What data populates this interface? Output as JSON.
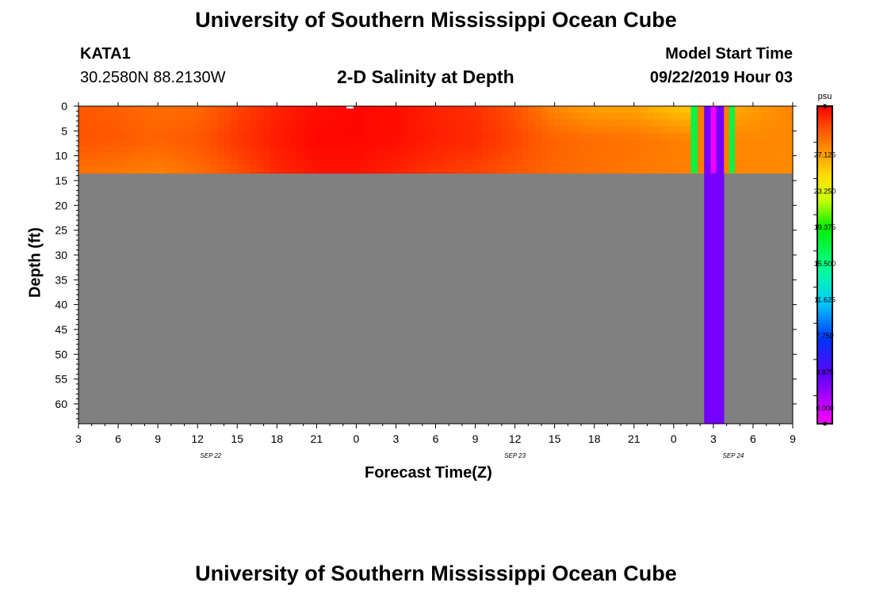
{
  "header": {
    "title": "University of Southern Mississippi Ocean Cube",
    "station": "KATA1",
    "coords": "30.2580N 88.2130W",
    "plot_title": "2-D Salinity at Depth",
    "model_start_label": "Model Start Time",
    "model_start_value": "09/22/2019 Hour 03"
  },
  "footer": {
    "title": "University of Southern Mississippi Ocean Cube"
  },
  "colors": {
    "no_data": "#808080",
    "background": "#ffffff"
  },
  "chart_data": {
    "type": "heatmap",
    "title": "2-D Salinity at Depth",
    "xlabel": "Forecast Time(Z)",
    "ylabel": "Depth (ft)",
    "x_hours_range": [
      0,
      54
    ],
    "x_tick_labels": [
      "3",
      "6",
      "9",
      "12",
      "15",
      "18",
      "21",
      "0",
      "3",
      "6",
      "9",
      "12",
      "15",
      "18",
      "21",
      "0",
      "3",
      "6",
      "9"
    ],
    "date_labels": [
      {
        "text": "SEP 22",
        "hour": 10
      },
      {
        "text": "SEP 23",
        "hour": 33
      },
      {
        "text": "SEP 24",
        "hour": 49.5
      }
    ],
    "y_range_ft": [
      0,
      64
    ],
    "y_tick_labels": [
      "0",
      "5",
      "10",
      "15",
      "20",
      "25",
      "30",
      "35",
      "40",
      "45",
      "50",
      "55",
      "60"
    ],
    "water_depth_ft": 13.5,
    "colorbar": {
      "unit": "psu",
      "range": [
        -3,
        31
      ],
      "tick_labels": [
        "27.125",
        "23.250",
        "19.375",
        "15.500",
        "11.625",
        "7.750",
        "3.875",
        "0.000"
      ],
      "stops": [
        {
          "value": -3,
          "color": "#ff00ff"
        },
        {
          "value": 2,
          "color": "#6600ff"
        },
        {
          "value": 6,
          "color": "#0033ff"
        },
        {
          "value": 10,
          "color": "#00ccff"
        },
        {
          "value": 13.5,
          "color": "#00ff99"
        },
        {
          "value": 18,
          "color": "#00ee00"
        },
        {
          "value": 21,
          "color": "#ccff00"
        },
        {
          "value": 23.5,
          "color": "#ffdd00"
        },
        {
          "value": 26,
          "color": "#ff9900"
        },
        {
          "value": 28.5,
          "color": "#ff5500"
        },
        {
          "value": 31,
          "color": "#ff0000"
        }
      ]
    },
    "salinity_field": {
      "series_time_hours": [
        0,
        3,
        6,
        9,
        12,
        15,
        18,
        21,
        24,
        27,
        30,
        33,
        36,
        39,
        42,
        45,
        46.3,
        54
      ],
      "surface_psu": [
        28.4,
        28.1,
        27.6,
        27.8,
        29,
        30,
        30.6,
        30.8,
        30.6,
        30.0,
        29.6,
        28.6,
        26.6,
        25.6,
        25.6,
        24.4,
        24.2,
        26.8
      ],
      "mid_psu": [
        28.6,
        28.4,
        28.0,
        28.4,
        29.4,
        30.2,
        30.8,
        30.8,
        30.6,
        30.1,
        29.8,
        29.0,
        28.0,
        27.6,
        27.4,
        27.0,
        26.8,
        26.6
      ],
      "bottom_psu": [
        27.4,
        27.2,
        26.9,
        27.6,
        28.6,
        29.8,
        30.4,
        30.4,
        30.0,
        29.4,
        29.0,
        28.4,
        27.8,
        27.5,
        27.2,
        27.0,
        26.9,
        26.5
      ]
    },
    "anomaly_columns": [
      {
        "hour_start": 46.3,
        "hour_end": 46.8,
        "psu": 16,
        "extent": "water"
      },
      {
        "hour_start": 46.8,
        "hour_end": 47.3,
        "psu": 27,
        "extent": "water"
      },
      {
        "hour_start": 47.3,
        "hour_end": 48.8,
        "psu": 1.5,
        "extent": "full"
      },
      {
        "hour_start": 47.8,
        "hour_end": 48.2,
        "psu": -2.5,
        "extent": "water"
      },
      {
        "hour_start": 48.8,
        "hour_end": 49.2,
        "psu": 27,
        "extent": "water"
      },
      {
        "hour_start": 49.2,
        "hour_end": 49.6,
        "psu": 16,
        "extent": "water"
      }
    ]
  }
}
